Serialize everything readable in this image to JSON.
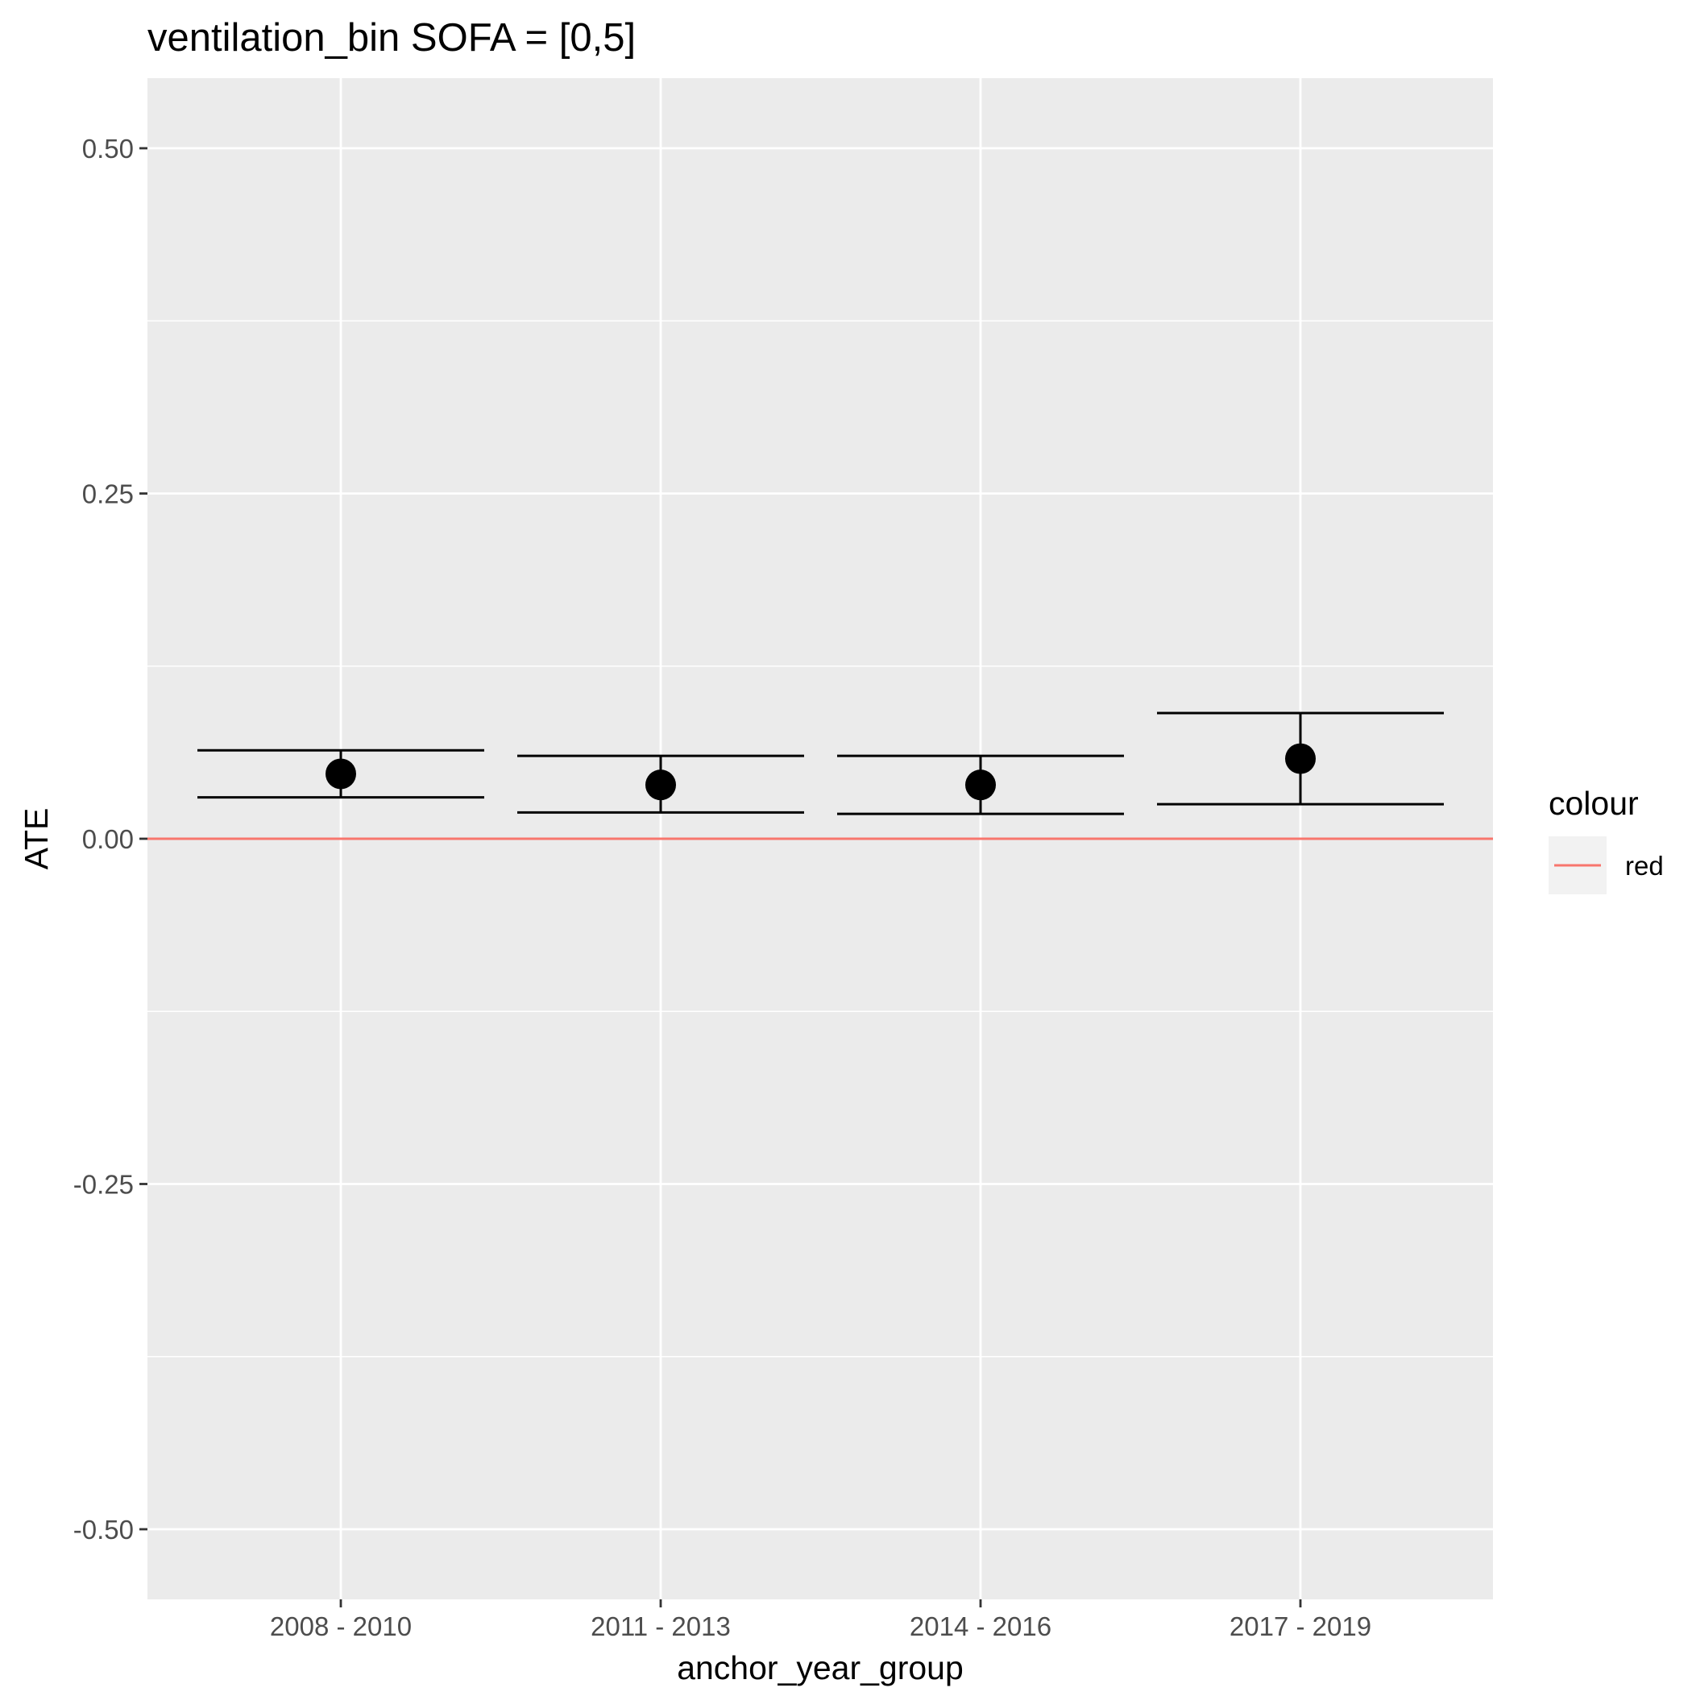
{
  "chart_data": {
    "type": "scatter",
    "title": "ventilation_bin SOFA = [0,5]",
    "xlabel": "anchor_year_group",
    "ylabel": "ATE",
    "categories": [
      "2008 - 2010",
      "2011 - 2013",
      "2014 - 2016",
      "2017 - 2019"
    ],
    "series": [
      {
        "values": [
          0.047,
          0.039,
          0.039,
          0.058
        ],
        "lower": [
          0.03,
          0.019,
          0.018,
          0.025
        ],
        "upper": [
          0.064,
          0.06,
          0.06,
          0.091
        ]
      }
    ],
    "reference_line": {
      "y": 0.0,
      "color": "#f8766d"
    },
    "ylim": [
      -0.55,
      0.55
    ],
    "yticks": [
      0.5,
      0.25,
      0.0,
      -0.25,
      -0.5
    ],
    "ytick_labels": [
      "0.50",
      "0.25",
      "0.00",
      "-0.25",
      "-0.50"
    ],
    "grid": true,
    "legend": {
      "title": "colour",
      "entries": [
        {
          "label": "red",
          "color": "#f8766d"
        }
      ],
      "position": "right"
    },
    "colors": {
      "panel": "#ebebeb",
      "grid": "#ffffff",
      "points": "#000000"
    }
  }
}
